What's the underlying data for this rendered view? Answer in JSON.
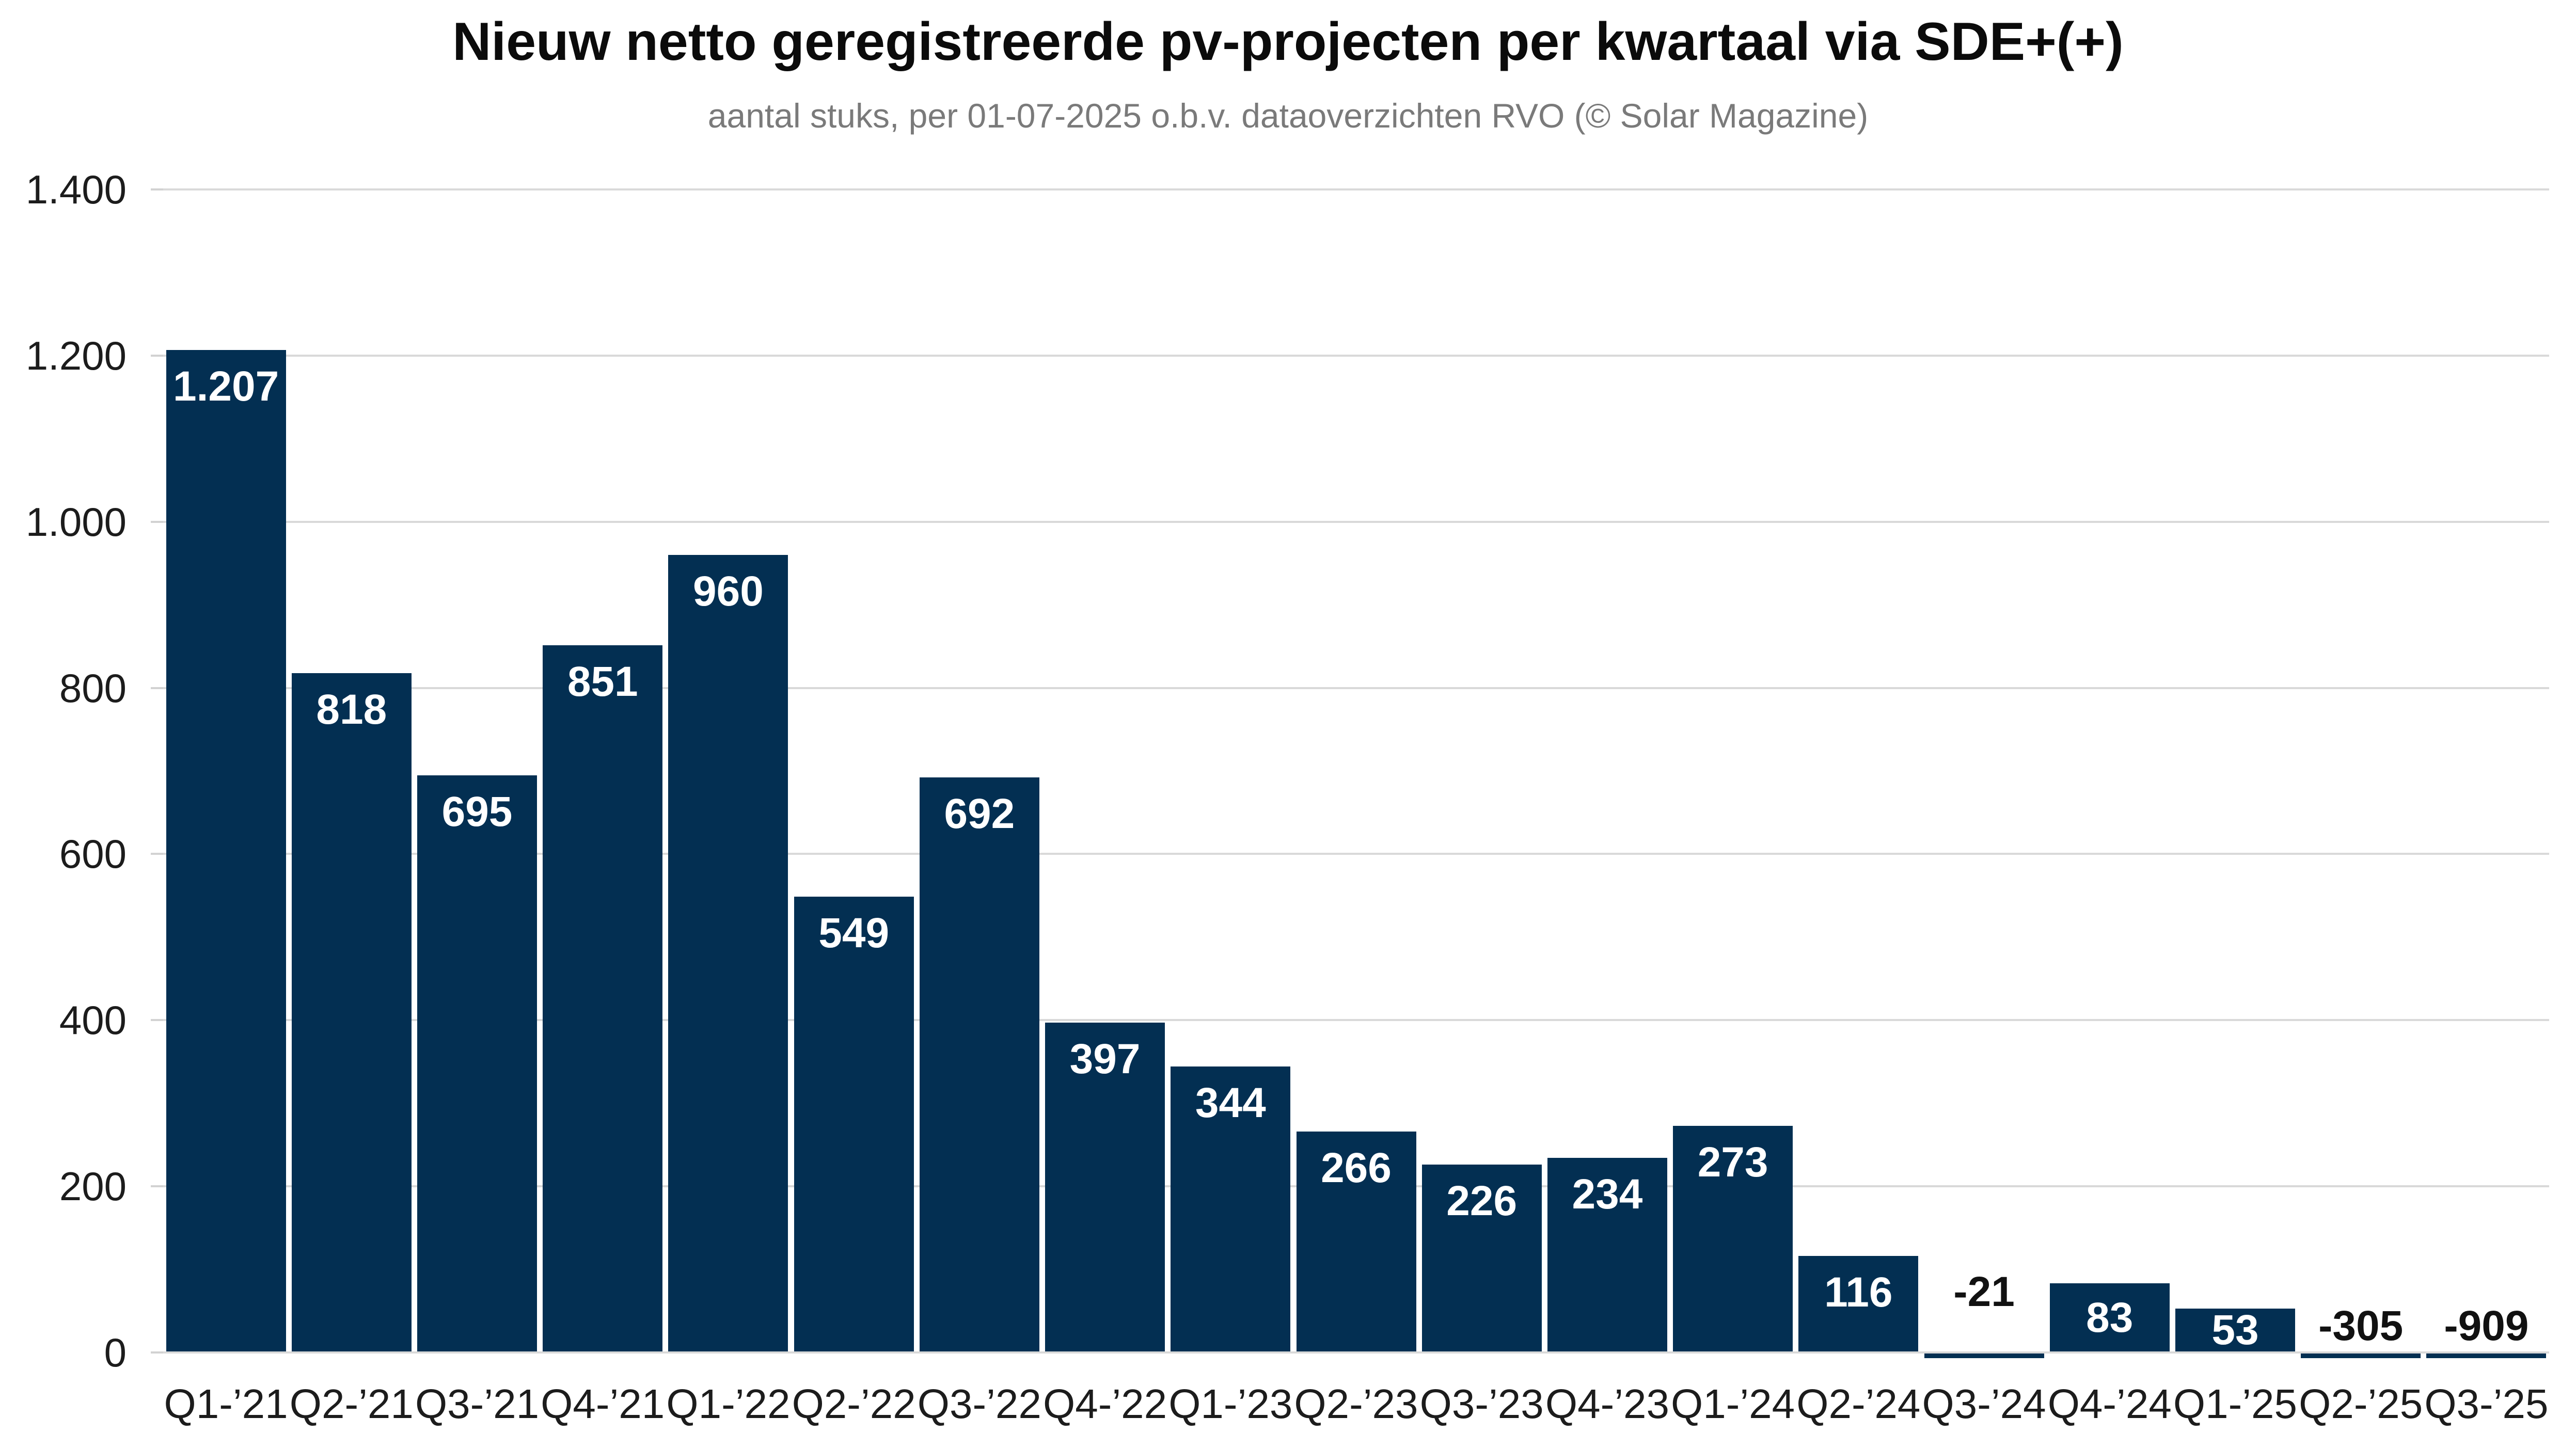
{
  "chart_data": {
    "type": "bar",
    "title": "Nieuw netto geregistreerde pv-projecten per kwartaal via SDE+(+)",
    "subtitle": "aantal stuks, per 01-07-2025 o.b.v. dataoverzichten RVO (© Solar Magazine)",
    "categories": [
      "Q1-’21",
      "Q2-’21",
      "Q3-’21",
      "Q4-’21",
      "Q1-’22",
      "Q2-’22",
      "Q3-’22",
      "Q4-’22",
      "Q1-’23",
      "Q2-’23",
      "Q3-’23",
      "Q4-’23",
      "Q1-’24",
      "Q2-’24",
      "Q3-’24",
      "Q4-’24",
      "Q1-’25",
      "Q2-’25",
      "Q3-’25"
    ],
    "values": [
      1207,
      818,
      695,
      851,
      960,
      549,
      692,
      397,
      344,
      266,
      226,
      234,
      273,
      116,
      -21,
      83,
      53,
      -305,
      -909
    ],
    "bar_labels": [
      "1.207",
      "818",
      "695",
      "851",
      "960",
      "549",
      "692",
      "397",
      "344",
      "266",
      "226",
      "234",
      "273",
      "116",
      "-21",
      "83",
      "53",
      "-305",
      "-909"
    ],
    "y_axis": {
      "min": 0,
      "max": 1400,
      "grid_step": 200,
      "tick_labels": [
        "0",
        "200",
        "400",
        "600",
        "800",
        "1.000",
        "1.200",
        "1.400"
      ],
      "gridlines": true
    },
    "legend_position": "none",
    "colors": {
      "bar": "#032F52",
      "grid": "#d9d9d9",
      "tick": "#d2d2d2",
      "bar_value_label": "#ffffff",
      "negative_value_label": "#111111",
      "axis_label": "#1c1c1c",
      "title": "#0b0b0b",
      "subtitle": "#7a7a7a",
      "background": "#ffffff"
    }
  }
}
